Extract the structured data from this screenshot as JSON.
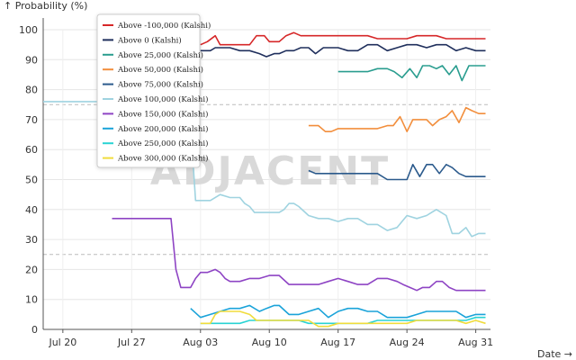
{
  "chart_data": {
    "type": "line",
    "title": "",
    "ylabel": "↑ Probability (%)",
    "xlabel": "Date →",
    "watermark": "ADJACENT",
    "x_range": [
      0,
      44
    ],
    "x_ticks": [
      {
        "day": 2,
        "label": "Jul 20"
      },
      {
        "day": 9,
        "label": "Jul 27"
      },
      {
        "day": 16,
        "label": "Aug 03"
      },
      {
        "day": 23,
        "label": "Aug 10"
      },
      {
        "day": 30,
        "label": "Aug 17"
      },
      {
        "day": 37,
        "label": "Aug 24"
      },
      {
        "day": 44,
        "label": "Aug 31"
      }
    ],
    "ylim": [
      0,
      100
    ],
    "y_ticks": [
      0,
      10,
      20,
      30,
      40,
      50,
      60,
      70,
      80,
      90,
      100
    ],
    "grid": true,
    "dashed_y_lines": [
      25,
      75
    ],
    "legend_position": "top-left",
    "series": [
      {
        "name": "Above -100,000 (Kalshi)",
        "color": "#d62728",
        "x": [
          16,
          16.7,
          17.5,
          18,
          18.5,
          19,
          20,
          21,
          21.7,
          22.5,
          23,
          24,
          24.7,
          25.5,
          26.2,
          27,
          28,
          29,
          30,
          31,
          32,
          33,
          34,
          35,
          36,
          37,
          38,
          39,
          40,
          41,
          42,
          43,
          44,
          45
        ],
        "y": [
          95,
          96,
          98,
          95,
          95,
          95,
          95,
          95,
          98,
          98,
          96,
          96,
          98,
          99,
          98,
          98,
          98,
          98,
          98,
          98,
          98,
          98,
          97,
          97,
          97,
          97,
          98,
          98,
          98,
          97,
          97,
          97,
          97,
          97
        ]
      },
      {
        "name": "Above 0 (Kalshi)",
        "color": "#1f2f5c",
        "x": [
          16,
          17,
          17.5,
          18,
          19,
          20,
          21,
          22,
          22.7,
          23.5,
          24,
          24.7,
          25.5,
          26.2,
          27,
          27.7,
          28.5,
          29,
          30,
          31,
          32,
          33,
          34,
          35,
          36,
          37,
          38,
          39,
          40,
          41,
          42,
          43,
          44,
          45
        ],
        "y": [
          93,
          93,
          94,
          94,
          94,
          93,
          93,
          92,
          91,
          92,
          92,
          93,
          93,
          94,
          94,
          92,
          94,
          94,
          94,
          93,
          93,
          95,
          95,
          93,
          94,
          95,
          95,
          94,
          95,
          95,
          93,
          94,
          93,
          93
        ]
      },
      {
        "name": "Above 25,000 (Kalshi)",
        "color": "#2a9d8f",
        "x": [
          30,
          31,
          32,
          33,
          34,
          35,
          35.7,
          36.5,
          37.3,
          38,
          38.6,
          39.3,
          40,
          40.6,
          41.3,
          42,
          42.6,
          43.3,
          44,
          45
        ],
        "y": [
          86,
          86,
          86,
          86,
          87,
          87,
          86,
          84,
          87,
          84,
          88,
          88,
          87,
          88,
          85,
          88,
          83,
          88,
          88,
          88
        ]
      },
      {
        "name": "Above 50,000 (Kalshi)",
        "color": "#f28e3c",
        "x": [
          27,
          28,
          28.7,
          29.3,
          30,
          31,
          32,
          33,
          34,
          35,
          35.6,
          36.3,
          37,
          37.6,
          38.3,
          39,
          39.6,
          40.3,
          41,
          41.6,
          42.3,
          43,
          43.6,
          44.3,
          45
        ],
        "y": [
          68,
          68,
          66,
          66,
          67,
          67,
          67,
          67,
          67,
          68,
          68,
          71,
          66,
          70,
          70,
          70,
          68,
          70,
          71,
          73,
          69,
          74,
          73,
          72,
          72
        ]
      },
      {
        "name": "Above 75,000 (Kalshi)",
        "color": "#2b5a8c",
        "x": [
          27,
          27.7,
          28.5,
          29,
          30,
          31,
          32,
          33,
          34,
          35,
          36,
          37,
          37.6,
          38.3,
          39,
          39.6,
          40.3,
          41,
          41.6,
          42.3,
          43,
          43.6,
          44.3,
          45
        ],
        "y": [
          53,
          52,
          52,
          52,
          52,
          52,
          52,
          52,
          52,
          50,
          50,
          50,
          55,
          51,
          55,
          55,
          52,
          55,
          54,
          52,
          51,
          51,
          51,
          51
        ]
      },
      {
        "name": "Above 100,000 (Kalshi)",
        "color": "#9fd3e0",
        "x": [
          0,
          1,
          2,
          3,
          4,
          5,
          6,
          7,
          8,
          9,
          10,
          11,
          12,
          13,
          14,
          15,
          15.5,
          16,
          16.5,
          17,
          18,
          19,
          19.5,
          20,
          20.5,
          21,
          21.5,
          22,
          23,
          24,
          24.5,
          25,
          25.5,
          26,
          27,
          28,
          29,
          30,
          31,
          32,
          33,
          34,
          35,
          36,
          37,
          38,
          39,
          39.5,
          40,
          41,
          41.6,
          42.3,
          43,
          43.6,
          44.3,
          45
        ],
        "y": [
          76,
          76,
          76,
          76,
          76,
          76,
          76,
          76,
          76,
          76,
          76,
          76,
          76,
          76,
          76,
          68,
          43,
          43,
          43,
          43,
          45,
          44,
          44,
          44,
          42,
          41,
          39,
          39,
          39,
          39,
          40,
          42,
          42,
          41,
          38,
          37,
          37,
          36,
          37,
          37,
          35,
          35,
          33,
          34,
          38,
          37,
          38,
          39,
          40,
          38,
          32,
          32,
          34,
          31,
          32,
          32
        ]
      },
      {
        "name": "Above 150,000 (Kalshi)",
        "color": "#8e44c4",
        "x": [
          7,
          8,
          9,
          10,
          11,
          12,
          13,
          13.5,
          14,
          14.5,
          15,
          15.5,
          16,
          16.7,
          17.5,
          18,
          18.5,
          19,
          20,
          21,
          22,
          23,
          24,
          25,
          26,
          27,
          28,
          29,
          30,
          31,
          32,
          33,
          34,
          35,
          36,
          36.6,
          37.3,
          38,
          38.6,
          39.3,
          40,
          40.6,
          41.3,
          42,
          43,
          44,
          45
        ],
        "y": [
          37,
          37,
          37,
          37,
          37,
          37,
          37,
          20,
          14,
          14,
          14,
          17,
          19,
          19,
          20,
          19,
          17,
          16,
          16,
          17,
          17,
          18,
          18,
          15,
          15,
          15,
          15,
          16,
          17,
          16,
          15,
          15,
          17,
          17,
          16,
          15,
          14,
          13,
          14,
          14,
          16,
          16,
          14,
          13,
          13,
          13,
          13
        ]
      },
      {
        "name": "Above 200,000 (Kalshi)",
        "color": "#1aa3d9",
        "x": [
          15,
          16,
          17,
          18,
          19,
          20,
          21,
          22,
          22.7,
          23.5,
          24,
          25,
          26,
          27,
          28,
          29,
          30,
          31,
          32,
          33,
          34,
          35,
          36,
          37,
          38,
          39,
          40,
          41,
          42,
          43,
          44,
          45
        ],
        "y": [
          7,
          4,
          5,
          6,
          7,
          7,
          8,
          6,
          7,
          8,
          8,
          5,
          5,
          6,
          7,
          4,
          6,
          7,
          7,
          6,
          6,
          4,
          4,
          4,
          5,
          6,
          6,
          6,
          6,
          4,
          5,
          5
        ]
      },
      {
        "name": "Above 250,000 (Kalshi)",
        "color": "#29d3d3",
        "x": [
          16,
          17,
          18,
          19,
          20,
          21,
          22,
          23,
          24,
          25,
          26,
          27,
          28,
          29,
          30,
          31,
          32,
          33,
          34,
          35,
          36,
          37,
          38,
          39,
          40,
          41,
          42,
          43,
          44,
          45
        ],
        "y": [
          2,
          2,
          2,
          2,
          2,
          3,
          3,
          3,
          3,
          3,
          3,
          2,
          2,
          2,
          2,
          2,
          2,
          2,
          3,
          3,
          3,
          3,
          3,
          3,
          3,
          3,
          3,
          3,
          4,
          4
        ]
      },
      {
        "name": "Above 300,000 (Kalshi)",
        "color": "#f0dc3c",
        "x": [
          16,
          17,
          17.5,
          18,
          19,
          20,
          21,
          21.7,
          22.5,
          23,
          24,
          25,
          26,
          27,
          28,
          29,
          30,
          31,
          32,
          33,
          34,
          35,
          36,
          37,
          38,
          39,
          40,
          41,
          42,
          43,
          44,
          45
        ],
        "y": [
          2,
          2,
          5,
          6,
          6,
          6,
          5,
          3,
          3,
          3,
          3,
          3,
          3,
          3,
          1,
          1,
          2,
          2,
          2,
          2,
          2,
          2,
          2,
          2,
          3,
          3,
          3,
          3,
          3,
          2,
          3,
          2
        ]
      }
    ]
  }
}
